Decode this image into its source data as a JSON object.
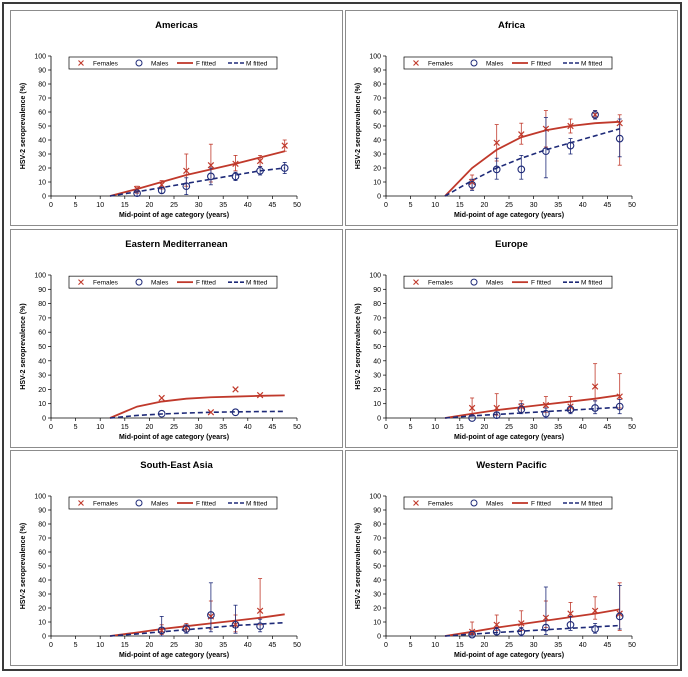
{
  "chart_data": [
    {
      "type": "line",
      "title": "Americas",
      "xlabel": "Mid-point of age category (years)",
      "ylabel": "HSV-2 seroprevalence (%)",
      "xlim": [
        0,
        50
      ],
      "ylim": [
        0,
        100
      ],
      "xticks": [
        0,
        5,
        10,
        15,
        20,
        25,
        30,
        35,
        40,
        45,
        50
      ],
      "yticks": [
        0,
        10,
        20,
        30,
        40,
        50,
        60,
        70,
        80,
        90,
        100
      ],
      "legend": [
        "Females",
        "Males",
        "F fitted",
        "M fitted"
      ],
      "females": {
        "x": [
          17.5,
          22.5,
          27.5,
          32.5,
          37.5,
          42.5,
          47.5
        ],
        "y": [
          5,
          8,
          18,
          22,
          23,
          25,
          36
        ],
        "lo": [
          2,
          5,
          7,
          10,
          18,
          21,
          32
        ],
        "hi": [
          7,
          11,
          30,
          37,
          29,
          29,
          40
        ]
      },
      "males": {
        "x": [
          17.5,
          22.5,
          27.5,
          32.5,
          37.5,
          42.5,
          47.5
        ],
        "y": [
          2,
          4,
          7,
          14,
          14,
          18,
          20
        ],
        "lo": [
          0,
          2,
          1,
          8,
          11,
          15,
          16
        ],
        "hi": [
          3,
          6,
          13,
          20,
          17,
          21,
          24
        ]
      },
      "f_fitted": {
        "x": [
          12,
          17.5,
          22.5,
          27.5,
          32.5,
          37.5,
          42.5,
          47.5
        ],
        "y": [
          0,
          5,
          10,
          15,
          19,
          23,
          27.5,
          32
        ]
      },
      "m_fitted": {
        "x": [
          12,
          17.5,
          22.5,
          27.5,
          32.5,
          37.5,
          42.5,
          47.5
        ],
        "y": [
          0,
          3,
          6,
          9,
          12,
          15,
          18,
          20
        ]
      }
    },
    {
      "type": "line",
      "title": "Africa",
      "xlabel": "Mid-point of age category (years)",
      "ylabel": "HSV-2 seroprevalence (%)",
      "xlim": [
        0,
        50
      ],
      "ylim": [
        0,
        100
      ],
      "xticks": [
        0,
        5,
        10,
        15,
        20,
        25,
        30,
        35,
        40,
        45,
        50
      ],
      "yticks": [
        0,
        10,
        20,
        30,
        40,
        50,
        60,
        70,
        80,
        90,
        100
      ],
      "legend": [
        "Females",
        "Males",
        "F fitted",
        "M fitted"
      ],
      "females": {
        "x": [
          17.5,
          22.5,
          27.5,
          32.5,
          37.5,
          42.5,
          47.5
        ],
        "y": [
          10,
          38,
          44,
          48,
          50,
          58,
          52
        ],
        "lo": [
          5,
          25,
          37,
          35,
          45,
          55,
          22
        ],
        "hi": [
          15,
          51,
          52,
          61,
          55,
          61,
          58
        ]
      },
      "males": {
        "x": [
          17.5,
          22.5,
          27.5,
          32.5,
          37.5,
          42.5,
          47.5
        ],
        "y": [
          8,
          19,
          19,
          32,
          36,
          58,
          41
        ],
        "lo": [
          4,
          12,
          12,
          13,
          30,
          55,
          28
        ],
        "hi": [
          12,
          27,
          29,
          56,
          41,
          61,
          55
        ]
      },
      "f_fitted": {
        "x": [
          12,
          17.5,
          22.5,
          27.5,
          32.5,
          37.5,
          42.5,
          47.5
        ],
        "y": [
          0,
          20,
          33,
          42,
          47,
          50,
          52,
          53
        ]
      },
      "m_fitted": {
        "x": [
          12,
          17.5,
          22.5,
          27.5,
          32.5,
          37.5,
          42.5,
          47.5
        ],
        "y": [
          0,
          11,
          20,
          27,
          33,
          38,
          43,
          48
        ]
      }
    },
    {
      "type": "line",
      "title": "Eastern Mediterranean",
      "xlabel": "Mid-point of age category (years)",
      "ylabel": "HSV-2 seroprevalence (%)",
      "xlim": [
        0,
        50
      ],
      "ylim": [
        0,
        100
      ],
      "xticks": [
        0,
        5,
        10,
        15,
        20,
        25,
        30,
        35,
        40,
        45,
        50
      ],
      "yticks": [
        0,
        10,
        20,
        30,
        40,
        50,
        60,
        70,
        80,
        90,
        100
      ],
      "legend": [
        "Females",
        "Males",
        "F fitted",
        "M fitted"
      ],
      "females": {
        "x": [
          22.5,
          32.5,
          37.5,
          42.5
        ],
        "y": [
          14,
          4,
          20,
          16
        ],
        "lo": [
          14,
          4,
          20,
          16
        ],
        "hi": [
          14,
          4,
          20,
          16
        ]
      },
      "males": {
        "x": [
          22.5,
          37.5
        ],
        "y": [
          3,
          4
        ],
        "lo": [
          3,
          4
        ],
        "hi": [
          3,
          4
        ]
      },
      "f_fitted": {
        "x": [
          12,
          17.5,
          22.5,
          27.5,
          32.5,
          37.5,
          42.5,
          47.5
        ],
        "y": [
          0,
          8,
          11.5,
          13.5,
          14.5,
          15,
          15.5,
          15.8
        ]
      },
      "m_fitted": {
        "x": [
          12,
          17.5,
          22.5,
          27.5,
          32.5,
          37.5,
          42.5,
          47.5
        ],
        "y": [
          0,
          1.8,
          2.8,
          3.5,
          4,
          4.3,
          4.5,
          4.6
        ]
      }
    },
    {
      "type": "line",
      "title": "Europe",
      "xlabel": "Mid-point of age category (years)",
      "ylabel": "HSV-2 seroprevalence (%)",
      "xlim": [
        0,
        50
      ],
      "ylim": [
        0,
        100
      ],
      "xticks": [
        0,
        5,
        10,
        15,
        20,
        25,
        30,
        35,
        40,
        45,
        50
      ],
      "yticks": [
        0,
        10,
        20,
        30,
        40,
        50,
        60,
        70,
        80,
        90,
        100
      ],
      "legend": [
        "Females",
        "Males",
        "F fitted",
        "M fitted"
      ],
      "females": {
        "x": [
          17.5,
          22.5,
          27.5,
          32.5,
          37.5,
          42.5,
          47.5
        ],
        "y": [
          7,
          7,
          8,
          9,
          8,
          22,
          15
        ],
        "lo": [
          2,
          2,
          4,
          4,
          4,
          12,
          7
        ],
        "hi": [
          14,
          17,
          12,
          15,
          15,
          38,
          31
        ]
      },
      "males": {
        "x": [
          17.5,
          22.5,
          27.5,
          32.5,
          37.5,
          42.5,
          47.5
        ],
        "y": [
          0,
          2,
          6,
          3,
          6,
          7,
          8
        ],
        "lo": [
          0,
          0,
          3,
          0,
          3,
          3,
          3
        ],
        "hi": [
          0,
          4,
          10,
          7,
          9,
          12,
          13
        ]
      },
      "f_fitted": {
        "x": [
          12,
          17.5,
          22.5,
          27.5,
          32.5,
          37.5,
          42.5,
          47.5
        ],
        "y": [
          0,
          3,
          5.5,
          7.5,
          9.5,
          11.5,
          13.5,
          16
        ]
      },
      "m_fitted": {
        "x": [
          12,
          17.5,
          22.5,
          27.5,
          32.5,
          37.5,
          42.5,
          47.5
        ],
        "y": [
          0,
          1.5,
          2.5,
          3.5,
          4.5,
          5.5,
          6.5,
          7.5
        ]
      }
    },
    {
      "type": "line",
      "title": "South-East Asia",
      "xlabel": "Mid-point of age category (years)",
      "ylabel": "HSV-2 seroprevalence (%)",
      "xlim": [
        0,
        50
      ],
      "ylim": [
        0,
        100
      ],
      "xticks": [
        0,
        5,
        10,
        15,
        20,
        25,
        30,
        35,
        40,
        45,
        50
      ],
      "yticks": [
        0,
        10,
        20,
        30,
        40,
        50,
        60,
        70,
        80,
        90,
        100
      ],
      "legend": [
        "Females",
        "Males",
        "F fitted",
        "M fitted"
      ],
      "females": {
        "x": [
          22.5,
          27.5,
          32.5,
          37.5,
          42.5
        ],
        "y": [
          4,
          6,
          14,
          8,
          18
        ],
        "lo": [
          1,
          3,
          5,
          3,
          8
        ],
        "hi": [
          8,
          9,
          25,
          15,
          41
        ]
      },
      "males": {
        "x": [
          22.5,
          27.5,
          32.5,
          37.5,
          42.5
        ],
        "y": [
          4,
          5,
          15,
          8,
          7
        ],
        "lo": [
          0,
          2,
          3,
          2,
          3
        ],
        "hi": [
          14,
          8,
          38,
          22,
          12
        ]
      },
      "f_fitted": {
        "x": [
          12,
          17.5,
          22.5,
          27.5,
          32.5,
          37.5,
          42.5,
          47.5
        ],
        "y": [
          0,
          2.5,
          5,
          7,
          9,
          11,
          13,
          15.5
        ]
      },
      "m_fitted": {
        "x": [
          12,
          17.5,
          22.5,
          27.5,
          32.5,
          37.5,
          42.5,
          47.5
        ],
        "y": [
          0,
          1.5,
          3,
          4.5,
          6,
          7.5,
          8.5,
          9.5
        ]
      }
    },
    {
      "type": "line",
      "title": "Western Pacific",
      "xlabel": "Mid-point of age category (years)",
      "ylabel": "HSV-2 seroprevalence (%)",
      "xlim": [
        0,
        50
      ],
      "ylim": [
        0,
        100
      ],
      "xticks": [
        0,
        5,
        10,
        15,
        20,
        25,
        30,
        35,
        40,
        45,
        50
      ],
      "yticks": [
        0,
        10,
        20,
        30,
        40,
        50,
        60,
        70,
        80,
        90,
        100
      ],
      "legend": [
        "Females",
        "Males",
        "F fitted",
        "M fitted"
      ],
      "females": {
        "x": [
          17.5,
          22.5,
          27.5,
          32.5,
          37.5,
          42.5,
          47.5
        ],
        "y": [
          3,
          8,
          9,
          13,
          16,
          18,
          16
        ],
        "lo": [
          1,
          4,
          4,
          6,
          10,
          12,
          4
        ],
        "hi": [
          10,
          15,
          18,
          25,
          24,
          28,
          38
        ]
      },
      "males": {
        "x": [
          17.5,
          22.5,
          27.5,
          32.5,
          37.5,
          42.5,
          47.5
        ],
        "y": [
          1,
          3,
          3,
          6,
          8,
          5,
          14
        ],
        "lo": [
          0,
          1,
          0,
          1,
          4,
          2,
          5
        ],
        "hi": [
          3,
          6,
          6,
          35,
          14,
          9,
          36
        ]
      },
      "f_fitted": {
        "x": [
          12,
          17.5,
          22.5,
          27.5,
          32.5,
          37.5,
          42.5,
          47.5
        ],
        "y": [
          0,
          3,
          6,
          8.5,
          11,
          13.5,
          16,
          19
        ]
      },
      "m_fitted": {
        "x": [
          12,
          17.5,
          22.5,
          27.5,
          32.5,
          37.5,
          42.5,
          47.5
        ],
        "y": [
          0,
          1.3,
          2.5,
          3.5,
          4.5,
          5.5,
          6.5,
          7.5
        ]
      }
    }
  ],
  "colors": {
    "female": "#c0392b",
    "male": "#1e2a78",
    "axis": "#000000",
    "panel_border": "#8c8c8c"
  }
}
